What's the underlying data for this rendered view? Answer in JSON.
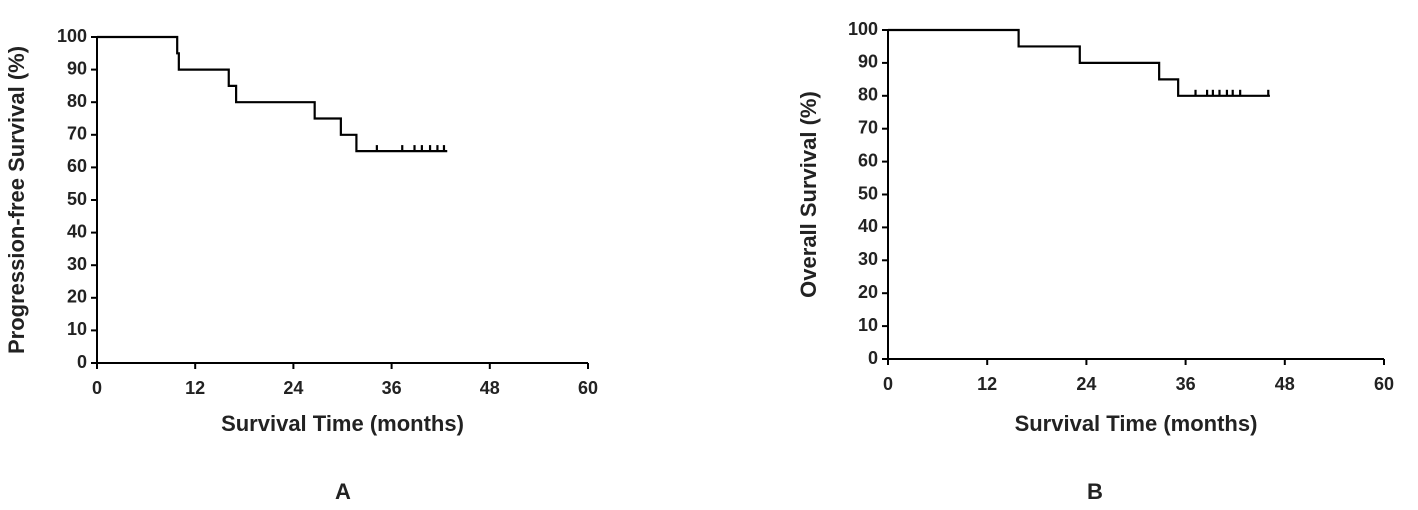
{
  "chart_data": [
    {
      "type": "step",
      "panel_label": "A",
      "xlabel": "Survival Time (months)",
      "ylabel": "Progression-free Survival (%)",
      "x": [
        0,
        9.8,
        10,
        16.1,
        17,
        26.6,
        29.8,
        31.7,
        42.8
      ],
      "values": [
        100,
        95,
        90,
        85,
        80,
        75,
        70,
        65,
        65
      ],
      "censored_x": [
        34.2,
        37.3,
        38.8,
        39.7,
        40.7,
        41.6,
        42.4
      ],
      "censored_values": [
        65,
        65,
        65,
        65,
        65,
        65,
        65
      ],
      "color": "#000000",
      "xlim": [
        0,
        60
      ],
      "xticks": [
        0,
        12,
        24,
        36,
        48,
        60
      ],
      "ylim": [
        0,
        100
      ],
      "yticks": [
        0,
        10,
        20,
        30,
        40,
        50,
        60,
        70,
        80,
        90,
        100
      ]
    },
    {
      "type": "step",
      "panel_label": "B",
      "xlabel": "Survival Time (months)",
      "ylabel": "Overall Survival (%)",
      "x": [
        0,
        15.8,
        23.2,
        32.8,
        35.1,
        46.2
      ],
      "values": [
        100,
        95,
        90,
        85,
        80,
        80
      ],
      "censored_x": [
        37.2,
        38.6,
        39.3,
        40.1,
        41,
        41.7,
        42.6,
        46
      ],
      "censored_values": [
        80,
        80,
        80,
        80,
        80,
        80,
        80,
        80
      ],
      "color": "#000000",
      "xlim": [
        0,
        60
      ],
      "xticks": [
        0,
        12,
        24,
        36,
        48,
        60
      ],
      "ylim": [
        0,
        100
      ],
      "yticks": [
        0,
        10,
        20,
        30,
        40,
        50,
        60,
        70,
        80,
        90,
        100
      ]
    }
  ]
}
